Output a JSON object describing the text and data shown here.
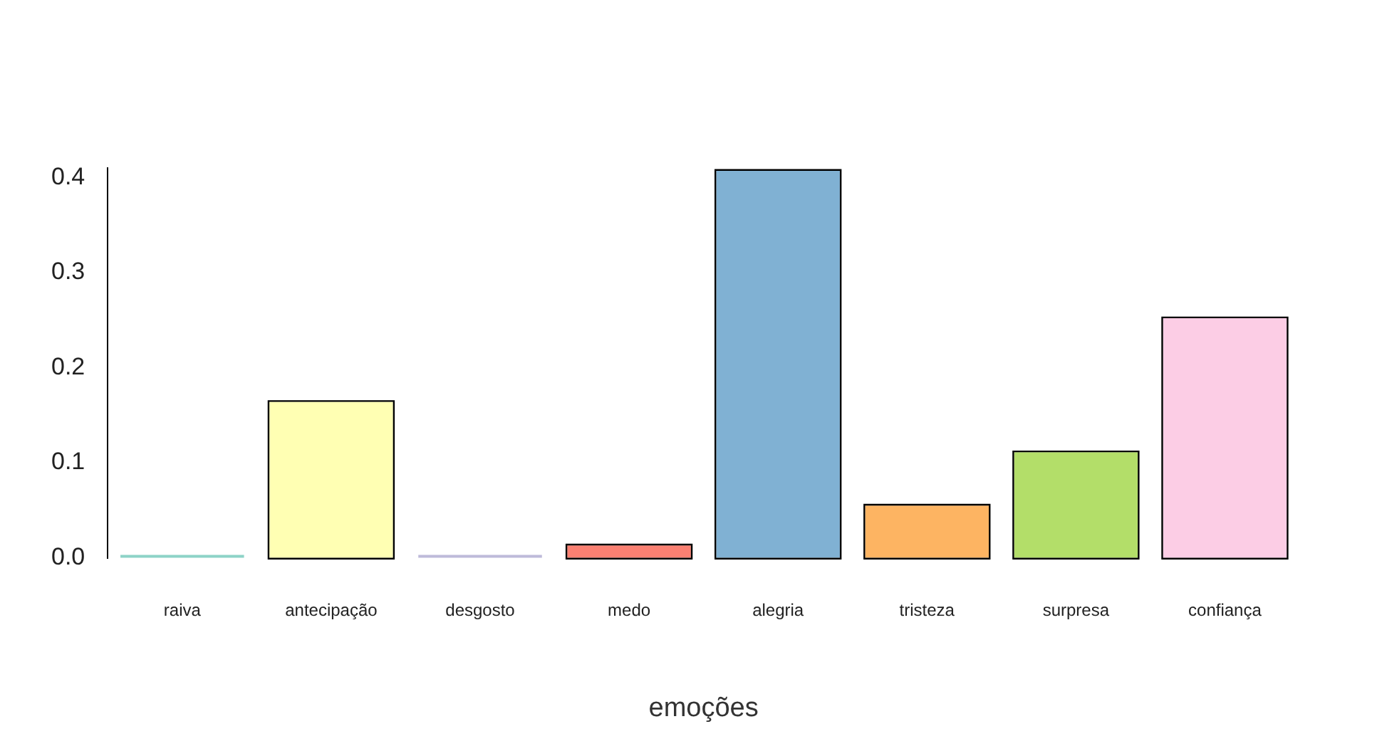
{
  "chart_data": {
    "type": "bar",
    "xlabel": "emoções",
    "categories": [
      "raiva",
      "antecipação",
      "desgosto",
      "medo",
      "alegria",
      "tristeza",
      "surpresa",
      "confiança"
    ],
    "values": [
      0,
      0.164,
      0,
      0.013,
      0.407,
      0.055,
      0.111,
      0.252
    ],
    "colors": [
      "#8dd3c7",
      "#ffffb3",
      "#bebada",
      "#fb8072",
      "#80b1d3",
      "#fdb462",
      "#b3de69",
      "#fccde5"
    ],
    "ylim": [
      0,
      0.41
    ],
    "yticks": [
      {
        "value": 0,
        "label": "0.0"
      },
      {
        "value": 0.1,
        "label": "0.1"
      },
      {
        "value": 0.2,
        "label": "0.2"
      },
      {
        "value": 0.3,
        "label": "0.3"
      },
      {
        "value": 0.4,
        "label": "0.4"
      }
    ],
    "grid": false,
    "legend": false
  }
}
